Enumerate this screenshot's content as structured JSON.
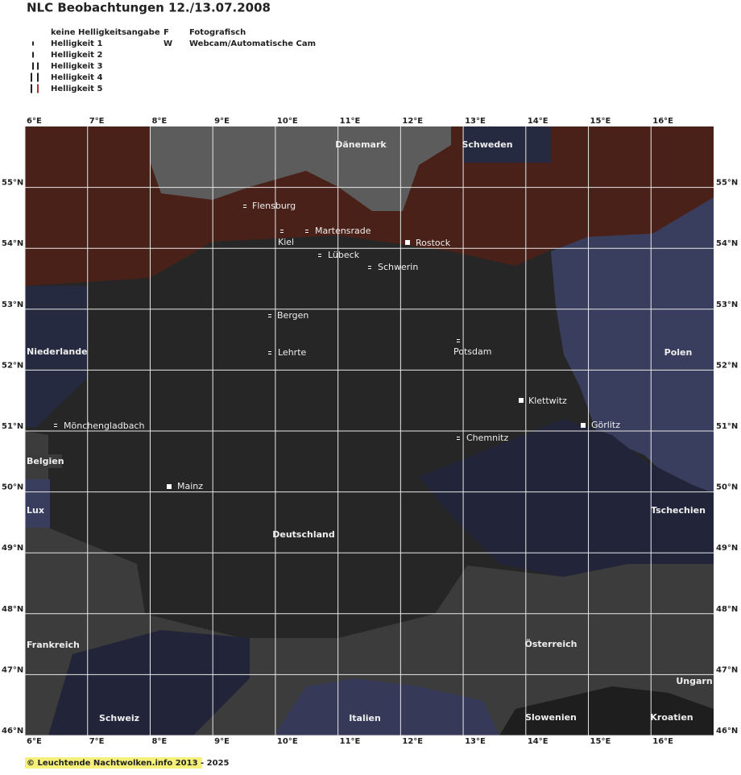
{
  "title": "NLC Beobachtungen 12./13.07.2008",
  "legend": {
    "brightness": [
      "keine Helligkeitsangabe",
      "Helligkeit 1",
      "Helligkeit 2",
      "Helligkeit 3",
      "Helligkeit 4",
      "Helligkeit 5"
    ],
    "methods": [
      {
        "symbol": "F",
        "label": "Fotografisch"
      },
      {
        "symbol": "W",
        "label": "Webcam/Automatische Cam"
      }
    ]
  },
  "lon_labels": [
    "6°E",
    "7°E",
    "8°E",
    "9°E",
    "10°E",
    "11°E",
    "12°E",
    "13°E",
    "14°E",
    "15°E",
    "16°E"
  ],
  "lat_labels": [
    "55°N",
    "54°N",
    "53°N",
    "52°N",
    "51°N",
    "50°N",
    "49°N",
    "48°N",
    "47°N",
    "46°N"
  ],
  "countries": [
    "Dänemark",
    "Schweden",
    "Niederlande",
    "Polen",
    "Belgien",
    "Lux",
    "Tschechien",
    "Deutschland",
    "Frankreich",
    "Österreich",
    "Ungarn",
    "Schweiz",
    "Italien",
    "Slowenien",
    "Kroatien"
  ],
  "cities": [
    "Flensburg",
    "Kiel",
    "Martensrade",
    "Rostock",
    "Lübeck",
    "Schwerin",
    "Bergen",
    "Lehrte",
    "Potsdam",
    "Klettwitz",
    "Görlitz",
    "Mönchengladbach",
    "Chemnitz",
    "Mainz"
  ],
  "footer": "© Leuchtende Nachtwolken.info 2013 - 2025"
}
